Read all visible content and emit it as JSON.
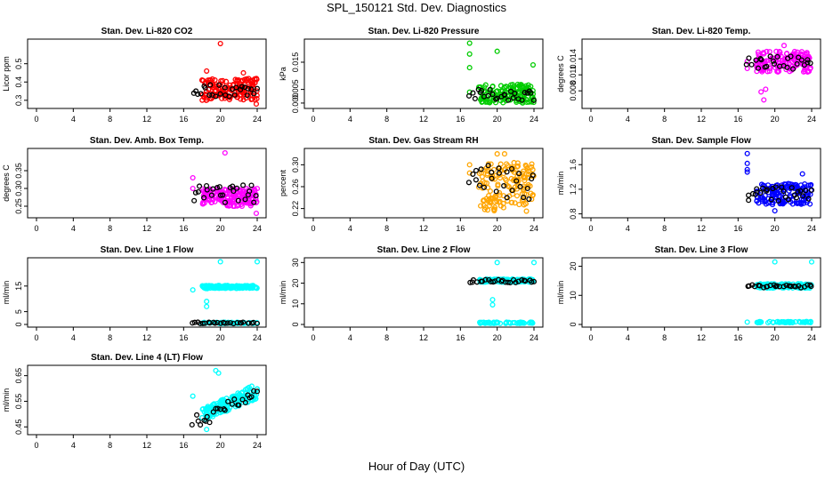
{
  "title": "SPL_150121  Std. Dev. Diagnostics",
  "xlabel": "Hour of Day (UTC)",
  "colors": {
    "red": "#ff0000",
    "green": "#00cc00",
    "magenta": "#ff00ff",
    "orange": "#ffa500",
    "blue": "#0000ff",
    "cyan": "#00ffff",
    "black": "#000000"
  },
  "chart_data": [
    {
      "type": "scatter",
      "title": "Stan. Dev. Li-820 CO2",
      "ylabel": "Licor ppm",
      "xlim": [
        0,
        24
      ],
      "ylim": [
        0.27,
        0.62
      ],
      "xticks": [
        "0",
        "4",
        "8",
        "12",
        "16",
        "20",
        "24"
      ],
      "yticks": [
        {
          "v": 0.3,
          "label": "0.3"
        },
        {
          "v": 0.4,
          "label": "0.4"
        },
        {
          "v": 0.5,
          "label": "0.5"
        }
      ],
      "color": "red",
      "minor_lo": 0.3,
      "minor_hi": 0.42,
      "black_lo": 0.32,
      "black_hi": 0.39,
      "outliers": [
        [
          20.0,
          0.61
        ],
        [
          18.5,
          0.46
        ],
        [
          23.9,
          0.28
        ],
        [
          22.5,
          0.45
        ]
      ]
    },
    {
      "type": "scatter",
      "title": "Stan. Dev. Li-820 Pressure",
      "ylabel": "kPa",
      "xlim": [
        0,
        24
      ],
      "ylim": [
        -0.001,
        0.0225
      ],
      "xticks": [
        "0",
        "4",
        "8",
        "12",
        "16",
        "20",
        "24"
      ],
      "yticks": [
        {
          "v": 0.0,
          "label": "0.000"
        },
        {
          "v": 0.005,
          "label": "0.005"
        },
        {
          "v": 0.015,
          "label": "0.015"
        }
      ],
      "color": "green",
      "minor_lo": 0.0,
      "minor_hi": 0.007,
      "black_lo": 0.001,
      "black_hi": 0.005,
      "outliers": [
        [
          17.0,
          0.022
        ],
        [
          17.0,
          0.018
        ],
        [
          17.0,
          0.013
        ],
        [
          20.0,
          0.019
        ],
        [
          23.9,
          0.014
        ],
        [
          17.0,
          0.004
        ]
      ]
    },
    {
      "type": "scatter",
      "title": "Stan. Dev. Li-820 Temp.",
      "ylabel": "degrees C",
      "xlim": [
        0,
        24
      ],
      "ylim": [
        0.0052,
        0.0172
      ],
      "xticks": [
        "0",
        "4",
        "8",
        "12",
        "16",
        "20",
        "24"
      ],
      "yticks": [
        {
          "v": 0.008,
          "label": "0.008"
        },
        {
          "v": 0.011,
          "label": "0.011"
        },
        {
          "v": 0.014,
          "label": "0.014"
        }
      ],
      "color": "magenta",
      "minor_lo": 0.0115,
      "minor_hi": 0.0155,
      "black_lo": 0.012,
      "black_hi": 0.0145,
      "outliers": [
        [
          17.0,
          0.0135
        ],
        [
          17.0,
          0.0122
        ],
        [
          18.8,
          0.0063
        ],
        [
          19.0,
          0.0083
        ],
        [
          18.5,
          0.0078
        ],
        [
          21.0,
          0.0165
        ]
      ]
    },
    {
      "type": "scatter",
      "title": "Stan. Dev. Amb. Box Temp.",
      "ylabel": "degrees C",
      "xlim": [
        0,
        24
      ],
      "ylim": [
        0.225,
        0.405
      ],
      "xticks": [
        "0",
        "4",
        "8",
        "12",
        "16",
        "20",
        "24"
      ],
      "yticks": [
        {
          "v": 0.25,
          "label": "0.25"
        },
        {
          "v": 0.3,
          "label": "0.30"
        },
        {
          "v": 0.35,
          "label": "0.35"
        }
      ],
      "color": "magenta",
      "minor_lo": 0.25,
      "minor_hi": 0.3,
      "black_lo": 0.26,
      "black_hi": 0.31,
      "outliers": [
        [
          17.0,
          0.33
        ],
        [
          17.0,
          0.3
        ],
        [
          20.5,
          0.4
        ],
        [
          23.9,
          0.23
        ]
      ]
    },
    {
      "type": "scatter",
      "title": "Stan. Dev. Gas Stream RH",
      "ylabel": "percent",
      "xlim": [
        0,
        24
      ],
      "ylim": [
        0.208,
        0.325
      ],
      "xticks": [
        "0",
        "4",
        "8",
        "12",
        "16",
        "20",
        "24"
      ],
      "yticks": [
        {
          "v": 0.22,
          "label": "0.22"
        },
        {
          "v": 0.26,
          "label": "0.26"
        },
        {
          "v": 0.3,
          "label": "0.30"
        }
      ],
      "color": "orange",
      "minor_lo": 0.215,
      "minor_hi": 0.305,
      "black_lo": 0.23,
      "black_hi": 0.3,
      "outliers": [
        [
          17.0,
          0.3
        ],
        [
          17.0,
          0.285
        ],
        [
          20.0,
          0.32
        ],
        [
          20.8,
          0.32
        ]
      ]
    },
    {
      "type": "scatter",
      "title": "Stan. Dev. Sample Flow",
      "ylabel": "ml/min",
      "xlim": [
        0,
        24
      ],
      "ylim": [
        0.78,
        1.82
      ],
      "xticks": [
        "0",
        "4",
        "8",
        "12",
        "16",
        "20",
        "24"
      ],
      "yticks": [
        {
          "v": 0.8,
          "label": "0.8"
        },
        {
          "v": 1.2,
          "label": "1.2"
        },
        {
          "v": 1.6,
          "label": "1.6"
        }
      ],
      "color": "blue",
      "minor_lo": 0.95,
      "minor_hi": 1.3,
      "black_lo": 1.0,
      "black_hi": 1.25,
      "outliers": [
        [
          17.0,
          1.78
        ],
        [
          17.0,
          1.62
        ],
        [
          17.0,
          1.52
        ],
        [
          17.0,
          1.48
        ],
        [
          20.0,
          0.85
        ],
        [
          23.0,
          1.45
        ]
      ]
    },
    {
      "type": "scatter",
      "title": "Stan. Dev. Line 1 Flow",
      "ylabel": "ml/min",
      "xlim": [
        0,
        24
      ],
      "ylim": [
        0,
        25
      ],
      "xticks": [
        "0",
        "4",
        "8",
        "12",
        "16",
        "20",
        "24"
      ],
      "yticks": [
        {
          "v": 0,
          "label": "0"
        },
        {
          "v": 5,
          "label": "5"
        },
        {
          "v": 15,
          "label": "15"
        }
      ],
      "color": "cyan",
      "minor_lo": 14.0,
      "minor_hi": 15.2,
      "black_lo": 0.3,
      "black_hi": 0.9,
      "low_cyan": 0.6,
      "outliers": [
        [
          17.0,
          13.5
        ],
        [
          18.5,
          9.0
        ],
        [
          18.5,
          7.0
        ],
        [
          20.0,
          24.5
        ],
        [
          24.0,
          24.5
        ]
      ]
    },
    {
      "type": "scatter",
      "title": "Stan. Dev. Line 2 Flow",
      "ylabel": "ml/min",
      "xlim": [
        0,
        24
      ],
      "ylim": [
        0,
        31
      ],
      "xticks": [
        "0",
        "4",
        "8",
        "12",
        "16",
        "20",
        "24"
      ],
      "yticks": [
        {
          "v": 0,
          "label": "0"
        },
        {
          "v": 10,
          "label": "10"
        },
        {
          "v": 20,
          "label": "20"
        },
        {
          "v": 30,
          "label": "30"
        }
      ],
      "color": "cyan",
      "minor_lo": 20.5,
      "minor_hi": 22.0,
      "black_lo": 20.2,
      "black_hi": 21.8,
      "low_cyan": 0.8,
      "outliers": [
        [
          19.5,
          12.0
        ],
        [
          19.5,
          9.5
        ],
        [
          20.0,
          30.0
        ],
        [
          24.0,
          30.0
        ]
      ]
    },
    {
      "type": "scatter",
      "title": "Stan. Dev. Line 3 Flow",
      "ylabel": "ml/min",
      "xlim": [
        0,
        24
      ],
      "ylim": [
        0,
        22
      ],
      "xticks": [
        "0",
        "4",
        "8",
        "12",
        "16",
        "20",
        "24"
      ],
      "yticks": [
        {
          "v": 0,
          "label": "0"
        },
        {
          "v": 10,
          "label": "10"
        },
        {
          "v": 20,
          "label": "20"
        }
      ],
      "color": "cyan",
      "minor_lo": 12.5,
      "minor_hi": 14.0,
      "black_lo": 12.6,
      "black_hi": 13.6,
      "low_cyan": 0.8,
      "outliers": [
        [
          17.0,
          0.8
        ],
        [
          20.0,
          21.5
        ],
        [
          24.0,
          21.5
        ]
      ]
    },
    {
      "type": "scatter",
      "title": "Stan. Dev. Line 4 (LT) Flow",
      "ylabel": "ml/min",
      "xlim": [
        0,
        24
      ],
      "ylim": [
        0.43,
        0.68
      ],
      "xticks": [
        "0",
        "4",
        "8",
        "12",
        "16",
        "20",
        "24"
      ],
      "yticks": [
        {
          "v": 0.45,
          "label": "0.45"
        },
        {
          "v": 0.55,
          "label": "0.55"
        },
        {
          "v": 0.65,
          "label": "0.65"
        }
      ],
      "color": "cyan",
      "minor_lo": 0.55,
      "minor_hi": 0.63,
      "black_lo": 0.55,
      "black_hi": 0.61,
      "ramp": true,
      "outliers": [
        [
          17.0,
          0.57
        ],
        [
          19.5,
          0.67
        ],
        [
          19.8,
          0.66
        ],
        [
          18.5,
          0.44
        ]
      ]
    }
  ]
}
